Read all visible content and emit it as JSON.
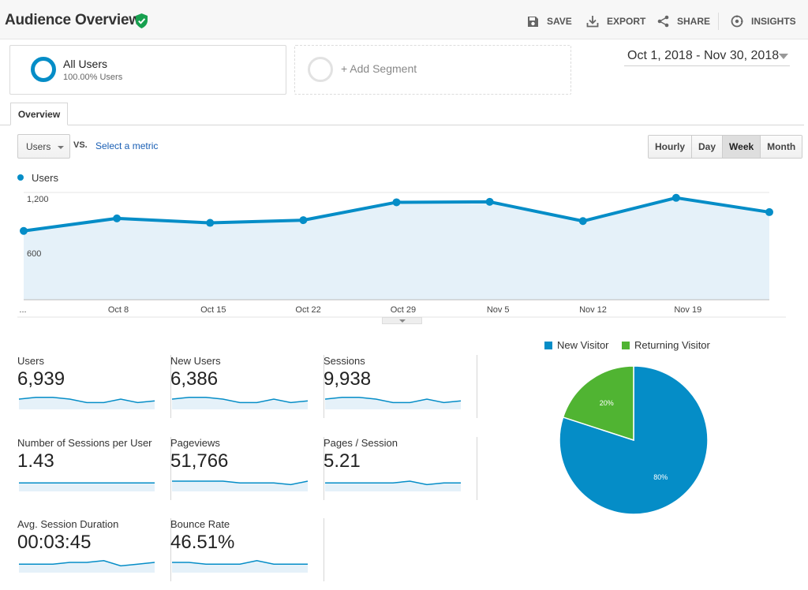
{
  "header": {
    "title": "Audience Overview",
    "save": "SAVE",
    "export": "EXPORT",
    "share": "SHARE",
    "insights": "INSIGHTS"
  },
  "segments": {
    "active_name": "All Users",
    "active_pct": "100.00% Users",
    "add_label": "+ Add Segment"
  },
  "date_range": "Oct 1, 2018 - Nov 30, 2018",
  "tabs": [
    "Overview"
  ],
  "controls": {
    "metric": "Users",
    "vs": "VS.",
    "select_metric": "Select a metric",
    "granularity": [
      "Hourly",
      "Day",
      "Week",
      "Month"
    ],
    "granularity_selected": "Week"
  },
  "colors": {
    "primary": "#058dc7",
    "secondary": "#50b432",
    "area": "#e5f1f9"
  },
  "chart_data": [
    {
      "type": "area",
      "series": [
        {
          "name": "Users",
          "values": [
            770,
            910,
            860,
            890,
            1090,
            1095,
            880,
            1140,
            980
          ]
        }
      ],
      "x_tick_labels": [
        "...",
        "Oct 8",
        "Oct 15",
        "Oct 22",
        "Oct 29",
        "Nov 5",
        "Nov 12",
        "Nov 19"
      ],
      "y_tick_labels": [
        "1,200",
        "600"
      ],
      "ylim": [
        0,
        1200
      ],
      "grid": true
    },
    {
      "type": "pie",
      "categories": [
        "New Visitor",
        "Returning Visitor"
      ],
      "values": [
        80,
        20
      ],
      "slice_labels": [
        "80%",
        "20%"
      ],
      "colors": [
        "#058dc7",
        "#50b432"
      ],
      "legend": "top"
    }
  ],
  "scorecards": [
    {
      "label": "Users",
      "value": "6,939",
      "spark": [
        5,
        6,
        6,
        5,
        3,
        3,
        5,
        3,
        4
      ]
    },
    {
      "label": "New Users",
      "value": "6,386",
      "spark": [
        5,
        6,
        6,
        5,
        3,
        3,
        5,
        3,
        4
      ]
    },
    {
      "label": "Sessions",
      "value": "9,938",
      "spark": [
        5,
        6,
        6,
        5,
        3,
        3,
        5,
        3,
        4
      ]
    },
    {
      "label": "Number of Sessions per User",
      "value": "1.43",
      "spark": [
        4,
        4,
        4,
        4,
        4,
        4,
        4,
        4,
        4
      ]
    },
    {
      "label": "Pageviews",
      "value": "51,766",
      "spark": [
        5,
        5,
        5,
        5,
        4,
        4,
        4,
        3,
        5
      ]
    },
    {
      "label": "Pages / Session",
      "value": "5.21",
      "spark": [
        4,
        4,
        4,
        4,
        4,
        5,
        3,
        4,
        4
      ]
    },
    {
      "label": "Avg. Session Duration",
      "value": "00:03:45",
      "spark": [
        4,
        4,
        4,
        5,
        5,
        6,
        3,
        4,
        5
      ]
    },
    {
      "label": "Bounce Rate",
      "value": "46.51%",
      "spark": [
        5,
        5,
        4,
        4,
        4,
        6,
        4,
        4,
        4
      ]
    }
  ]
}
